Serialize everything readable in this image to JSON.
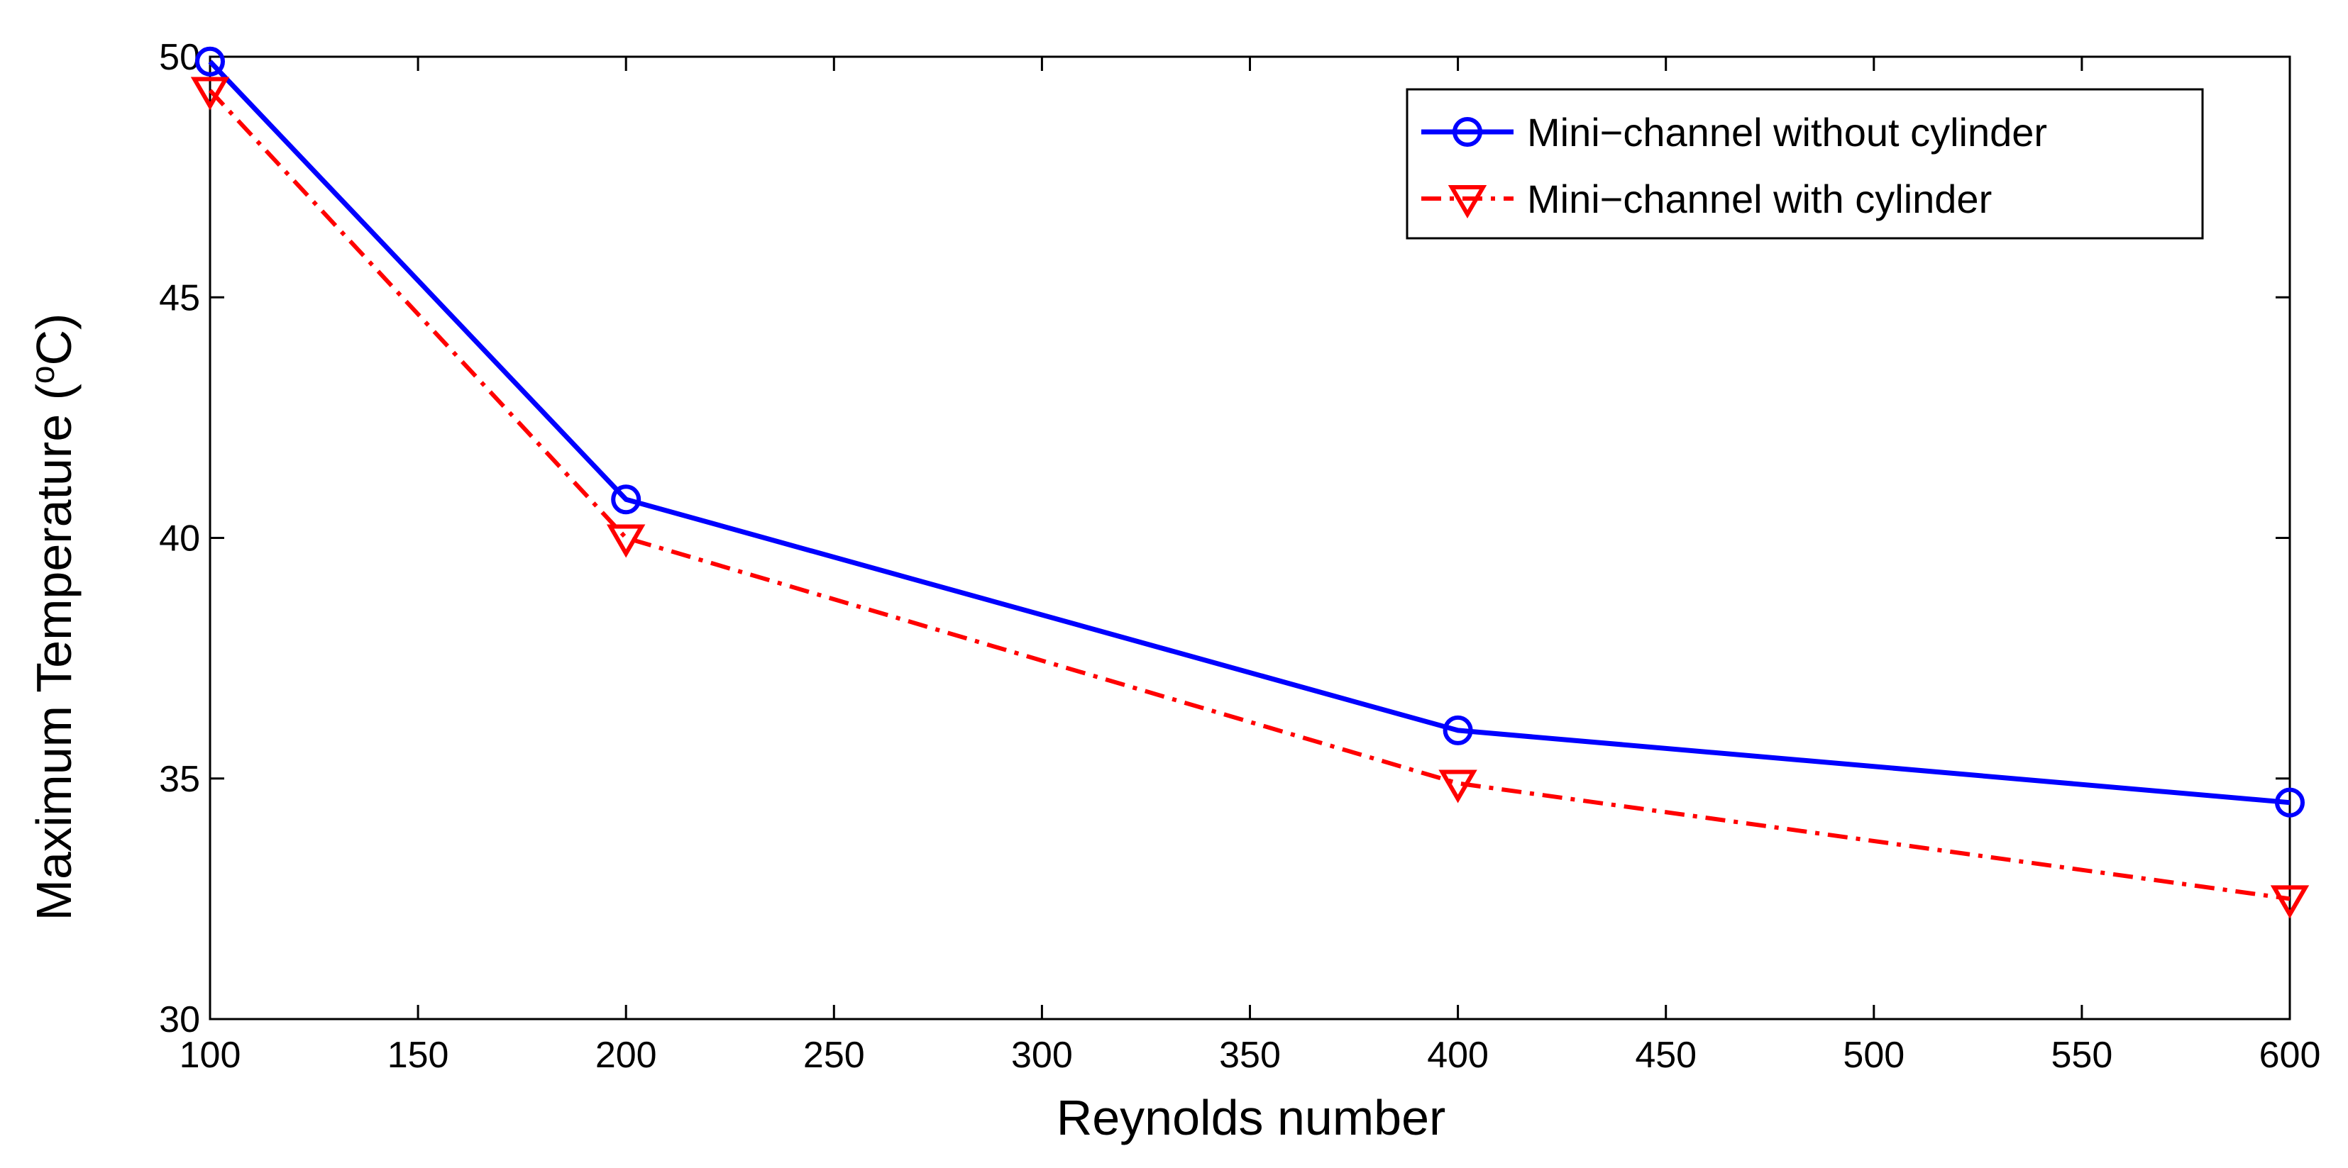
{
  "chart_data": {
    "type": "line",
    "xlabel": "Reynolds number",
    "ylabel": {
      "prefix": "Maximum Temperature (",
      "superscript": "o",
      "suffix": "C)"
    },
    "xlim": [
      100,
      600
    ],
    "ylim": [
      30,
      50
    ],
    "x_ticks": [
      100,
      150,
      200,
      250,
      300,
      350,
      400,
      450,
      500,
      550,
      600
    ],
    "y_ticks": [
      30,
      35,
      40,
      45,
      50
    ],
    "grid": false,
    "legend_position": "top-right",
    "series": [
      {
        "name": "Mini−channel without cylinder",
        "color": "#0000ff",
        "line_style": "solid",
        "marker": "circle",
        "x": [
          100,
          200,
          400,
          600
        ],
        "y": [
          49.9,
          40.8,
          36.0,
          34.5
        ]
      },
      {
        "name": "Mini−channel with cylinder",
        "color": "#ff0000",
        "line_style": "dash-dot",
        "marker": "triangle-down",
        "x": [
          100,
          200,
          400,
          600
        ],
        "y": [
          49.3,
          40.0,
          34.9,
          32.5
        ]
      }
    ]
  }
}
